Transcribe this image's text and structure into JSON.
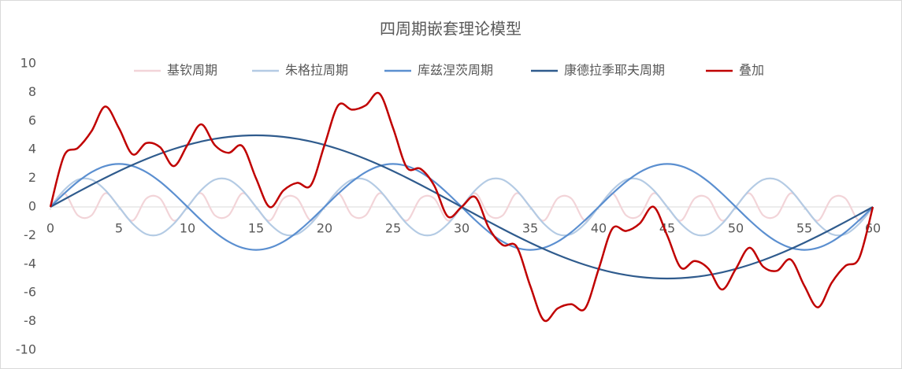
{
  "chart_data": {
    "type": "line",
    "title": "四周期嵌套理论模型",
    "x": [
      0,
      1,
      2,
      3,
      4,
      5,
      6,
      7,
      8,
      9,
      10,
      11,
      12,
      13,
      14,
      15,
      16,
      17,
      18,
      19,
      20,
      21,
      22,
      23,
      24,
      25,
      26,
      27,
      28,
      29,
      30,
      31,
      32,
      33,
      34,
      35,
      36,
      37,
      38,
      39,
      40,
      41,
      42,
      43,
      44,
      45,
      46,
      47,
      48,
      49,
      50,
      51,
      52,
      53,
      54,
      55,
      56,
      57,
      58,
      59,
      60
    ],
    "xlim": [
      0,
      60
    ],
    "xticks": [
      0,
      5,
      10,
      15,
      20,
      25,
      30,
      35,
      40,
      45,
      50,
      55,
      60
    ],
    "ylim": [
      -10,
      10
    ],
    "yticks": [
      -10,
      -8,
      -6,
      -4,
      -2,
      0,
      2,
      4,
      6,
      8,
      10
    ],
    "grid": false,
    "legend": "top",
    "series": [
      {
        "name": "基钦周期",
        "color": "#f2d4d8",
        "values": [
          0,
          0.951,
          -0.588,
          -0.588,
          0.951,
          0,
          -0.951,
          0.588,
          0.588,
          -0.951,
          0,
          0.951,
          -0.588,
          -0.588,
          0.951,
          0,
          -0.951,
          0.588,
          0.588,
          -0.951,
          0,
          0.951,
          -0.588,
          -0.588,
          0.951,
          0,
          -0.951,
          0.588,
          0.588,
          -0.951,
          0,
          0.951,
          -0.588,
          -0.588,
          0.951,
          0,
          -0.951,
          0.588,
          0.588,
          -0.951,
          0,
          0.951,
          -0.588,
          -0.588,
          0.951,
          0,
          -0.951,
          0.588,
          0.588,
          -0.951,
          0,
          0.951,
          -0.588,
          -0.588,
          0.951,
          0,
          -0.951,
          0.588,
          0.588,
          -0.951,
          0
        ]
      },
      {
        "name": "朱格拉周期",
        "color": "#b4cbe4",
        "values": [
          0,
          1.176,
          1.902,
          1.902,
          1.176,
          0,
          -1.176,
          -1.902,
          -1.902,
          -1.176,
          0,
          1.176,
          1.902,
          1.902,
          1.176,
          0,
          -1.176,
          -1.902,
          -1.902,
          -1.176,
          0,
          1.176,
          1.902,
          1.902,
          1.176,
          0,
          -1.176,
          -1.902,
          -1.902,
          -1.176,
          0,
          1.176,
          1.902,
          1.902,
          1.176,
          0,
          -1.176,
          -1.902,
          -1.902,
          -1.176,
          0,
          1.176,
          1.902,
          1.902,
          1.176,
          0,
          -1.176,
          -1.902,
          -1.902,
          -1.176,
          0,
          1.176,
          1.902,
          1.902,
          1.176,
          0,
          -1.176,
          -1.902,
          -1.902,
          -1.176,
          0
        ]
      },
      {
        "name": "库兹涅茨周期",
        "color": "#5b8fd0",
        "values": [
          0,
          0.927,
          1.763,
          2.427,
          2.853,
          3,
          2.853,
          2.427,
          1.763,
          0.927,
          0,
          -0.927,
          -1.763,
          -2.427,
          -2.853,
          -3,
          -2.853,
          -2.427,
          -1.763,
          -0.927,
          0,
          0.927,
          1.763,
          2.427,
          2.853,
          3,
          2.853,
          2.427,
          1.763,
          0.927,
          0,
          -0.927,
          -1.763,
          -2.427,
          -2.853,
          -3,
          -2.853,
          -2.427,
          -1.763,
          -0.927,
          0,
          0.927,
          1.763,
          2.427,
          2.853,
          3,
          2.853,
          2.427,
          1.763,
          0.927,
          0,
          -0.927,
          -1.763,
          -2.427,
          -2.853,
          -3,
          -2.853,
          -2.427,
          -1.763,
          -0.927,
          0
        ]
      },
      {
        "name": "康德拉季耶夫周期",
        "color": "#2f5b8d",
        "values": [
          0,
          0.523,
          1.04,
          1.545,
          2.034,
          2.5,
          2.939,
          3.346,
          3.716,
          4.045,
          4.33,
          4.568,
          4.755,
          4.891,
          4.973,
          5,
          4.973,
          4.891,
          4.755,
          4.568,
          4.33,
          4.045,
          3.716,
          3.346,
          2.939,
          2.5,
          2.034,
          1.545,
          1.04,
          0.523,
          0,
          -0.523,
          -1.04,
          -1.545,
          -2.034,
          -2.5,
          -2.939,
          -3.346,
          -3.716,
          -4.045,
          -4.33,
          -4.568,
          -4.755,
          -4.891,
          -4.973,
          -5,
          -4.973,
          -4.891,
          -4.755,
          -4.568,
          -4.33,
          -4.045,
          -3.716,
          -3.346,
          -2.939,
          -2.5,
          -2.034,
          -1.545,
          -1.04,
          -0.523,
          0
        ]
      },
      {
        "name": "叠加",
        "color": "#c00000",
        "values": [
          0,
          3.58,
          4.12,
          5.29,
          7.01,
          5.5,
          3.67,
          4.46,
          4.17,
          2.85,
          4.33,
          5.77,
          4.31,
          3.78,
          4.25,
          2,
          -0.01,
          1.15,
          1.68,
          1.51,
          4.33,
          7.1,
          6.79,
          7.09,
          7.92,
          5.5,
          2.76,
          2.66,
          1.49,
          -0.68,
          0,
          0.68,
          -1.49,
          -2.66,
          -2.76,
          -5.5,
          -7.92,
          -7.09,
          -6.79,
          -7.1,
          -4.33,
          -1.51,
          -1.68,
          -1.15,
          0.01,
          -2,
          -4.25,
          -3.78,
          -4.31,
          -5.77,
          -4.33,
          -2.85,
          -4.17,
          -4.46,
          -3.67,
          -5.5,
          -7.01,
          -5.29,
          -4.12,
          -3.58,
          0
        ]
      }
    ]
  }
}
